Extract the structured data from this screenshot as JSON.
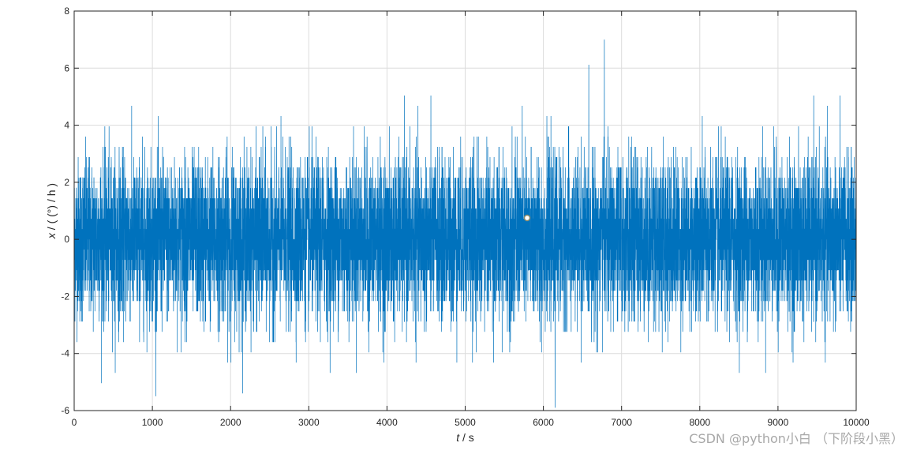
{
  "chart_data": {
    "type": "line",
    "title": "",
    "xlabel_var": "t",
    "xlabel_unit": " / s",
    "ylabel_var": "x",
    "ylabel_unit": " / (  (°) / h )",
    "xlim": [
      0,
      10000
    ],
    "ylim": [
      -6,
      8
    ],
    "x_ticks": [
      0,
      1000,
      2000,
      3000,
      4000,
      5000,
      6000,
      7000,
      8000,
      9000,
      10000
    ],
    "y_ticks": [
      -6,
      -4,
      -2,
      0,
      2,
      4,
      6,
      8
    ],
    "grid": true,
    "series": [
      {
        "name": "",
        "color": "#0072BD",
        "sample_count": 10000,
        "x_start": 0,
        "x_end": 10000,
        "mean": 0,
        "std_dev": 1.4,
        "quantization_step": 0.36,
        "observed_max": 7.0,
        "observed_max_at": 6780,
        "observed_min": -5.9,
        "observed_min_at": 6150
      }
    ]
  },
  "watermark": "CSDN @python小白 （下阶段小黑）"
}
